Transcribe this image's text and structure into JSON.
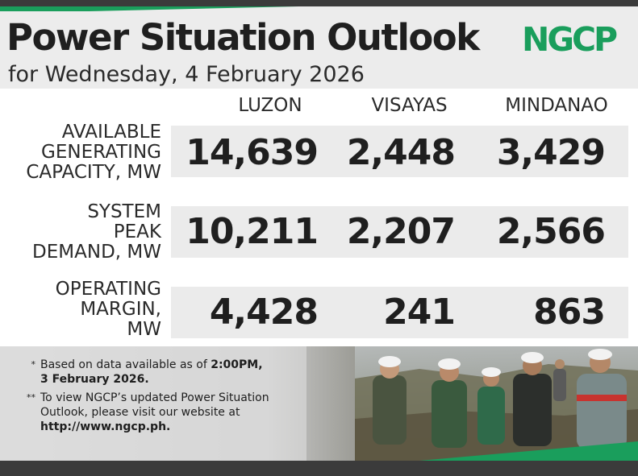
{
  "header": {
    "title": "Power Situation Outlook",
    "subtitle": "for Wednesday, 4 February 2026",
    "logo_text": "NGCP"
  },
  "columns": {
    "luzon": "LUZON",
    "visayas": "VISAYAS",
    "mindanao": "MINDANAO"
  },
  "rows": {
    "available": {
      "label": "AVAILABLE\nGENERATING\nCAPACITY, MW",
      "luzon": "14,639",
      "visayas": "2,448",
      "mindanao": "3,429"
    },
    "peak": {
      "label": "SYSTEM\nPEAK\nDEMAND, MW",
      "luzon": "10,211",
      "visayas": "2,207",
      "mindanao": "2,566"
    },
    "margin": {
      "label": "OPERATING\nMARGIN,\nMW",
      "luzon": "4,428",
      "visayas": "241",
      "mindanao": "863"
    }
  },
  "footnotes": {
    "note1_mark": "*",
    "note1_text": "Based on data available as of ",
    "note1_time": "2:00PM,",
    "note1_date": "3 February 2026.",
    "note2_mark": "**",
    "note2_text": "To view NGCP’s updated Power Situation Outlook, please visit our website at",
    "note2_url": "http://www.ngcp.ph."
  },
  "colors": {
    "brand_green": "#1a9e5c",
    "dark_bar": "#3b3b3b",
    "band_gray": "#ebebeb",
    "text_dark": "#1f1f1f"
  },
  "icons": {
    "logo": "ngcp-logo-icon",
    "photo": "workers-photo-icon"
  }
}
